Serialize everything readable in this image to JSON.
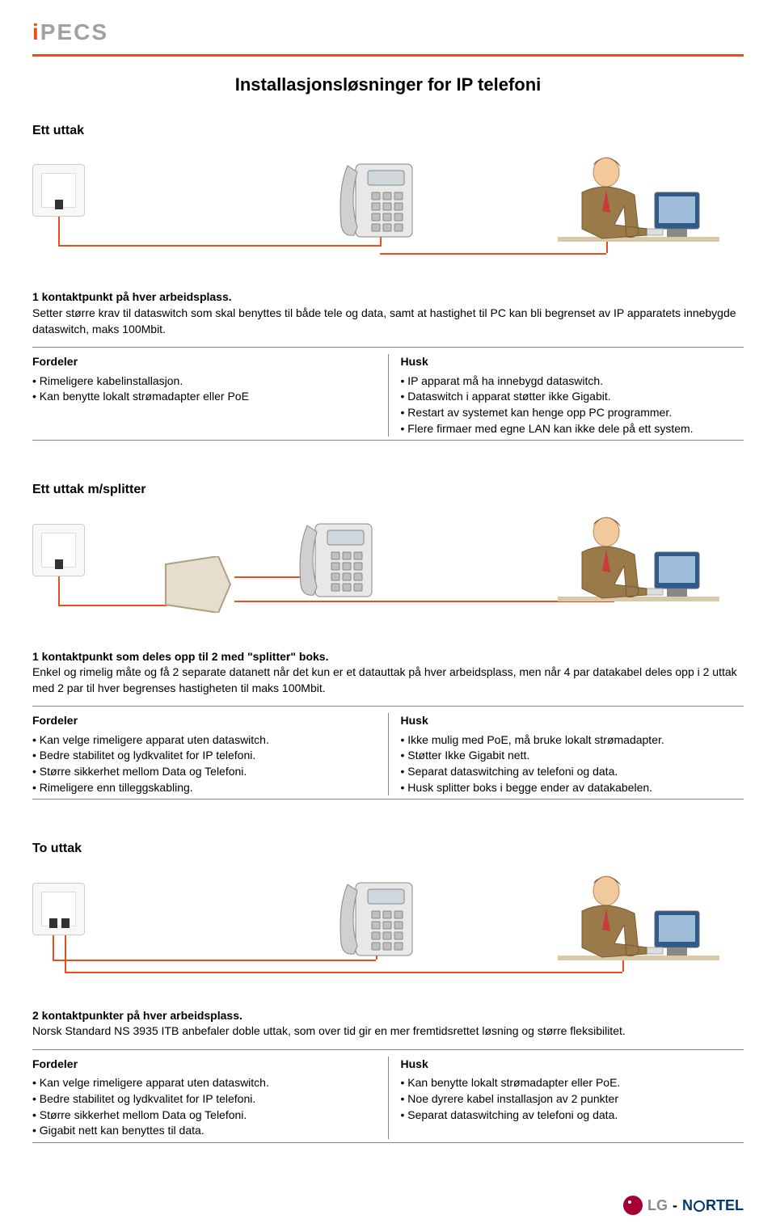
{
  "brand": {
    "logo_text": "iPECS"
  },
  "page_title": "Installasjonsløsninger for IP telefoni",
  "colors": {
    "accent": "#e94e1b",
    "rule": "#888888",
    "text": "#000000",
    "outlet_bg": "#f8f8f4",
    "phone_gray": "#bfbfbf",
    "person_brown": "#9b7a4a",
    "screen_blue": "#2f5a8a",
    "lg_red": "#a50034",
    "nortel_blue": "#003a70"
  },
  "sections": [
    {
      "title": "Ett uttak",
      "diagram": "single",
      "lead": "1 kontaktpunkt på hver arbeidsplass.",
      "body": "Setter større krav til dataswitch som skal benyttes til både tele og data, samt at hastighet til PC kan bli begrenset av IP apparatets innebygde dataswitch, maks 100Mbit.",
      "fordeler_title": "Fordeler",
      "fordeler": [
        "Rimeligere kabelinstallasjon.",
        "Kan benytte lokalt strømadapter eller PoE"
      ],
      "husk_title": "Husk",
      "husk": [
        "IP apparat må ha innebygd dataswitch.",
        "Dataswitch i apparat støtter ikke Gigabit.",
        "Restart av systemet kan henge opp PC programmer.",
        "Flere firmaer med egne LAN kan ikke dele på ett system."
      ]
    },
    {
      "title": "Ett uttak m/splitter",
      "diagram": "splitter",
      "lead": "1 kontaktpunkt som deles opp til 2 med \"splitter\" boks.",
      "body": "Enkel og rimelig måte og få 2 separate datanett når det kun er et datauttak på hver arbeidsplass, men når 4 par datakabel deles opp i 2 uttak med 2 par til hver begrenses hastigheten til maks 100Mbit.",
      "fordeler_title": "Fordeler",
      "fordeler": [
        "Kan velge rimeligere apparat uten dataswitch.",
        "Bedre stabilitet og lydkvalitet for IP telefoni.",
        "Større sikkerhet mellom Data og Telefoni.",
        "Rimeligere enn tilleggskabling."
      ],
      "husk_title": "Husk",
      "husk": [
        "Ikke mulig med PoE, må bruke lokalt strømadapter.",
        "Støtter Ikke Gigabit nett.",
        "Separat dataswitching av telefoni og data.",
        "Husk splitter boks i begge ender av datakabelen."
      ]
    },
    {
      "title": "To uttak",
      "diagram": "double",
      "lead": "2 kontaktpunkter på hver arbeidsplass.",
      "body": "Norsk Standard NS 3935 ITB anbefaler doble uttak, som over tid gir en mer fremtidsrettet løsning og større fleksibilitet.",
      "fordeler_title": "Fordeler",
      "fordeler": [
        "Kan velge rimeligere apparat uten dataswitch.",
        "Bedre stabilitet og lydkvalitet for IP telefoni.",
        "Større sikkerhet mellom Data og Telefoni.",
        "Gigabit nett kan benyttes til data."
      ],
      "husk_title": "Husk",
      "husk": [
        "Kan benytte lokalt strømadapter eller PoE.",
        "Noe dyrere kabel installasjon av 2 punkter",
        "Separat dataswitching av telefoni og data."
      ]
    }
  ],
  "footer": {
    "lg": "LG",
    "dash": "-",
    "nortel": "N    RTEL"
  }
}
